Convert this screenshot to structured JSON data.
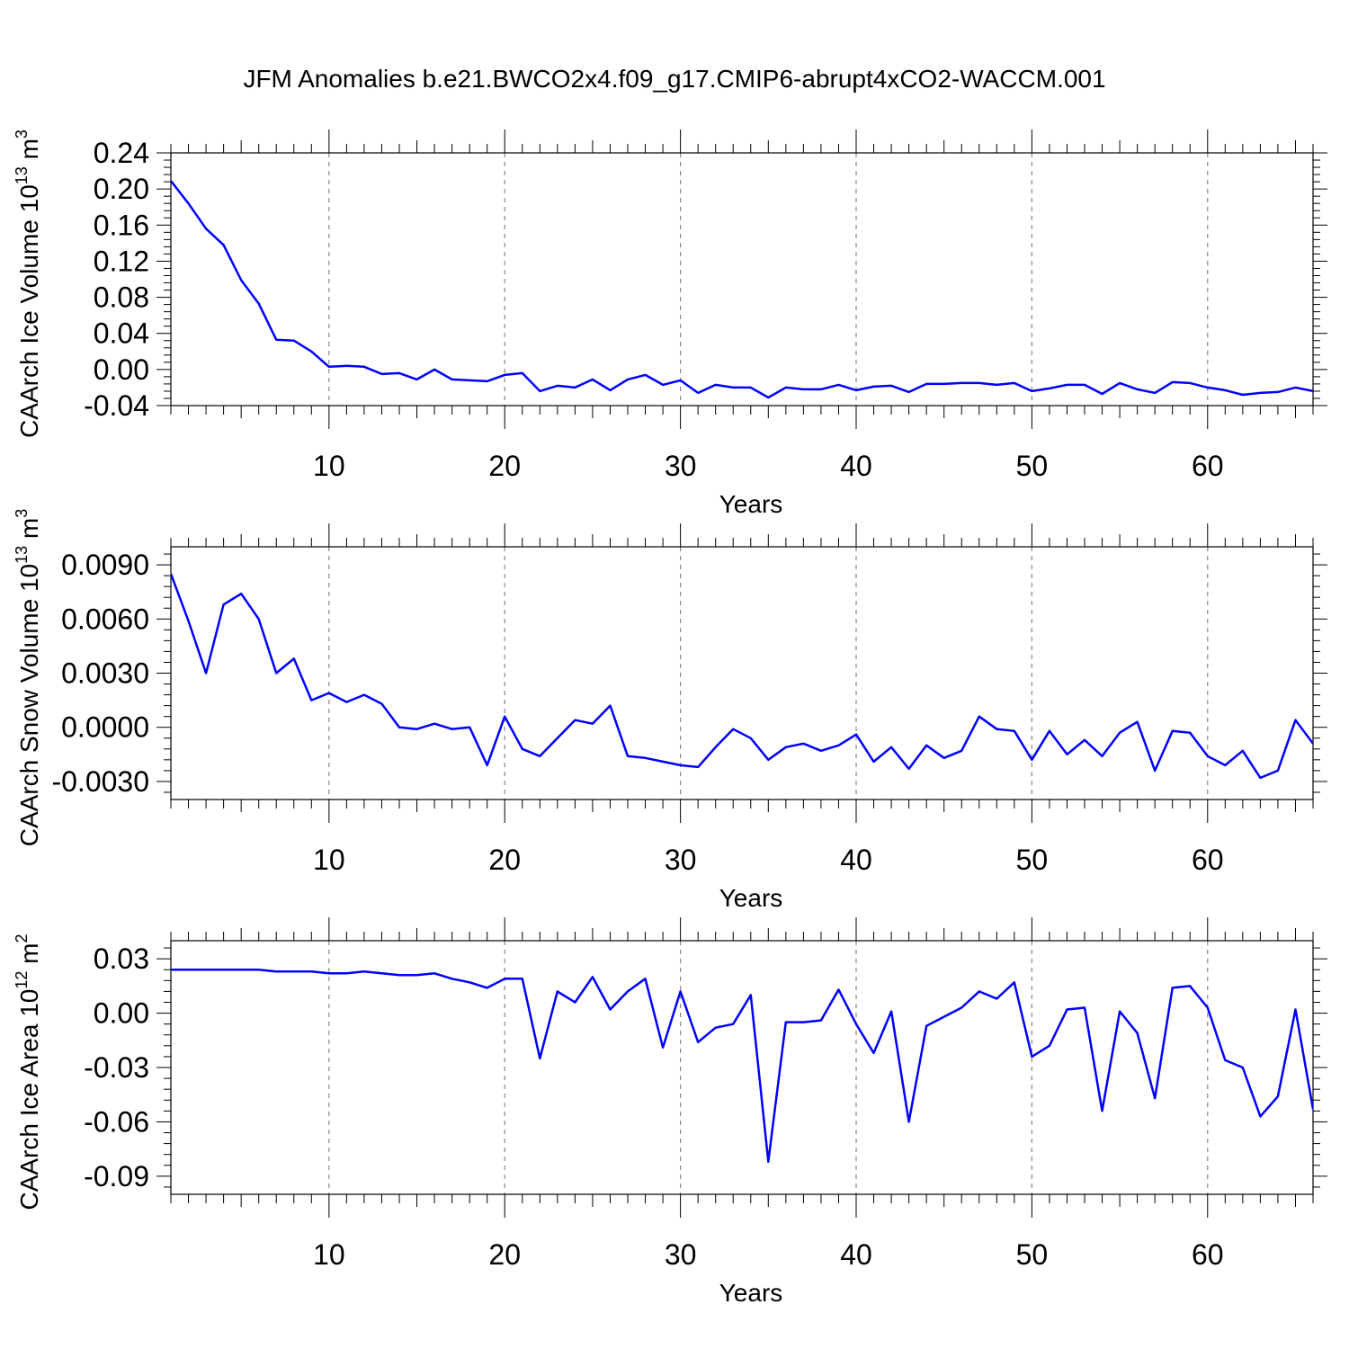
{
  "title": "JFM Anomalies b.e21.BWCO2x4.f09_g17.CMIP6-abrupt4xCO2-WACCM.001",
  "colors": {
    "series": "#0000ff",
    "grid": "#888888",
    "axis": "#000000"
  },
  "chart_data": [
    {
      "type": "line",
      "ylabel": "CAArch Ice Volume 10",
      "ylabel_sup": "13",
      "ylabel_unit": "m",
      "ylabel_unit_sup": "3",
      "xlabel": "Years",
      "xlim": [
        1,
        66
      ],
      "ylim": [
        -0.04,
        0.24
      ],
      "yticks": [
        "-0.04",
        "0.00",
        "0.04",
        "0.08",
        "0.12",
        "0.16",
        "0.20",
        "0.24"
      ],
      "xticks": [
        "10",
        "20",
        "30",
        "40",
        "50",
        "60"
      ],
      "grid_x": true,
      "x": [
        1,
        2,
        3,
        4,
        5,
        6,
        7,
        8,
        9,
        10,
        11,
        12,
        13,
        14,
        15,
        16,
        17,
        18,
        19,
        20,
        21,
        22,
        23,
        24,
        25,
        26,
        27,
        28,
        29,
        30,
        31,
        32,
        33,
        34,
        35,
        36,
        37,
        38,
        39,
        40,
        41,
        42,
        43,
        44,
        45,
        46,
        47,
        48,
        49,
        50,
        51,
        52,
        53,
        54,
        55,
        56,
        57,
        58,
        59,
        60,
        61,
        62,
        63,
        64,
        65,
        66
      ],
      "series": [
        {
          "values": [
            0.209,
            0.184,
            0.156,
            0.138,
            0.099,
            0.073,
            0.033,
            0.032,
            0.02,
            0.003,
            0.004,
            0.003,
            -0.005,
            -0.004,
            -0.011,
            -0.0,
            -0.011,
            -0.012,
            -0.013,
            -0.006,
            -0.004,
            -0.024,
            -0.018,
            -0.02,
            -0.011,
            -0.023,
            -0.011,
            -0.006,
            -0.017,
            -0.012,
            -0.026,
            -0.017,
            -0.02,
            -0.02,
            -0.031,
            -0.02,
            -0.022,
            -0.022,
            -0.017,
            -0.023,
            -0.019,
            -0.018,
            -0.025,
            -0.016,
            -0.016,
            -0.015,
            -0.015,
            -0.017,
            -0.015,
            -0.024,
            -0.021,
            -0.017,
            -0.017,
            -0.027,
            -0.015,
            -0.022,
            -0.026,
            -0.014,
            -0.015,
            -0.02,
            -0.023,
            -0.028,
            -0.026,
            -0.025,
            -0.02,
            -0.024
          ]
        }
      ]
    },
    {
      "type": "line",
      "ylabel": "CAArch Snow Volume 10",
      "ylabel_sup": "13",
      "ylabel_unit": "m",
      "ylabel_unit_sup": "3",
      "xlabel": "Years",
      "xlim": [
        1,
        66
      ],
      "ylim": [
        -0.004,
        0.01
      ],
      "yticks": [
        "-0.0030",
        "0.0000",
        "0.0030",
        "0.0060",
        "0.0090"
      ],
      "xticks": [
        "10",
        "20",
        "30",
        "40",
        "50",
        "60"
      ],
      "grid_x": true,
      "x": [
        1,
        2,
        3,
        4,
        5,
        6,
        7,
        8,
        9,
        10,
        11,
        12,
        13,
        14,
        15,
        16,
        17,
        18,
        19,
        20,
        21,
        22,
        23,
        24,
        25,
        26,
        27,
        28,
        29,
        30,
        31,
        32,
        33,
        34,
        35,
        36,
        37,
        38,
        39,
        40,
        41,
        42,
        43,
        44,
        45,
        46,
        47,
        48,
        49,
        50,
        51,
        52,
        53,
        54,
        55,
        56,
        57,
        58,
        59,
        60,
        61,
        62,
        63,
        64,
        65,
        66
      ],
      "series": [
        {
          "values": [
            0.0085,
            0.0059,
            0.003,
            0.0068,
            0.0074,
            0.006,
            0.003,
            0.0038,
            0.0015,
            0.0019,
            0.0014,
            0.0018,
            0.0013,
            0.0,
            -0.0001,
            0.0002,
            -0.0001,
            0.0,
            -0.0021,
            0.0006,
            -0.0012,
            -0.0016,
            -0.0006,
            0.0004,
            0.0002,
            0.0012,
            -0.0016,
            -0.0017,
            -0.0019,
            -0.0021,
            -0.0022,
            -0.0011,
            -0.0001,
            -0.0006,
            -0.0018,
            -0.0011,
            -0.0009,
            -0.0013,
            -0.001,
            -0.0004,
            -0.0019,
            -0.0011,
            -0.0023,
            -0.001,
            -0.0017,
            -0.0013,
            0.0006,
            -0.0001,
            -0.0002,
            -0.0018,
            -0.0002,
            -0.0015,
            -0.0007,
            -0.0016,
            -0.0003,
            0.0003,
            -0.0024,
            -0.0002,
            -0.0003,
            -0.0016,
            -0.0021,
            -0.0013,
            -0.0028,
            -0.0024,
            0.0004,
            -0.0009
          ]
        }
      ]
    },
    {
      "type": "line",
      "ylabel": "CAArch Ice Area 10",
      "ylabel_sup": "12",
      "ylabel_unit": "m",
      "ylabel_unit_sup": "2",
      "xlabel": "Years",
      "xlim": [
        1,
        66
      ],
      "ylim": [
        -0.1,
        0.04
      ],
      "yticks": [
        "-0.09",
        "-0.06",
        "-0.03",
        "0.00",
        "0.03"
      ],
      "xticks": [
        "10",
        "20",
        "30",
        "40",
        "50",
        "60"
      ],
      "grid_x": true,
      "x": [
        1,
        2,
        3,
        4,
        5,
        6,
        7,
        8,
        9,
        10,
        11,
        12,
        13,
        14,
        15,
        16,
        17,
        18,
        19,
        20,
        21,
        22,
        23,
        24,
        25,
        26,
        27,
        28,
        29,
        30,
        31,
        32,
        33,
        34,
        35,
        36,
        37,
        38,
        39,
        40,
        41,
        42,
        43,
        44,
        45,
        46,
        47,
        48,
        49,
        50,
        51,
        52,
        53,
        54,
        55,
        56,
        57,
        58,
        59,
        60,
        61,
        62,
        63,
        64,
        65,
        66
      ],
      "series": [
        {
          "values": [
            0.024,
            0.024,
            0.024,
            0.024,
            0.024,
            0.024,
            0.023,
            0.023,
            0.023,
            0.022,
            0.022,
            0.023,
            0.022,
            0.021,
            0.021,
            0.022,
            0.019,
            0.017,
            0.014,
            0.019,
            0.019,
            -0.025,
            0.012,
            0.006,
            0.02,
            0.002,
            0.012,
            0.019,
            -0.019,
            0.012,
            -0.016,
            -0.008,
            -0.006,
            0.01,
            -0.082,
            -0.005,
            -0.005,
            -0.004,
            0.013,
            -0.006,
            -0.022,
            0.001,
            -0.06,
            -0.007,
            -0.002,
            0.003,
            0.012,
            0.008,
            0.017,
            -0.024,
            -0.018,
            0.002,
            0.003,
            -0.054,
            0.001,
            -0.011,
            -0.047,
            0.014,
            0.015,
            0.003,
            -0.026,
            -0.03,
            -0.057,
            -0.046,
            0.002,
            -0.053
          ]
        }
      ]
    }
  ]
}
